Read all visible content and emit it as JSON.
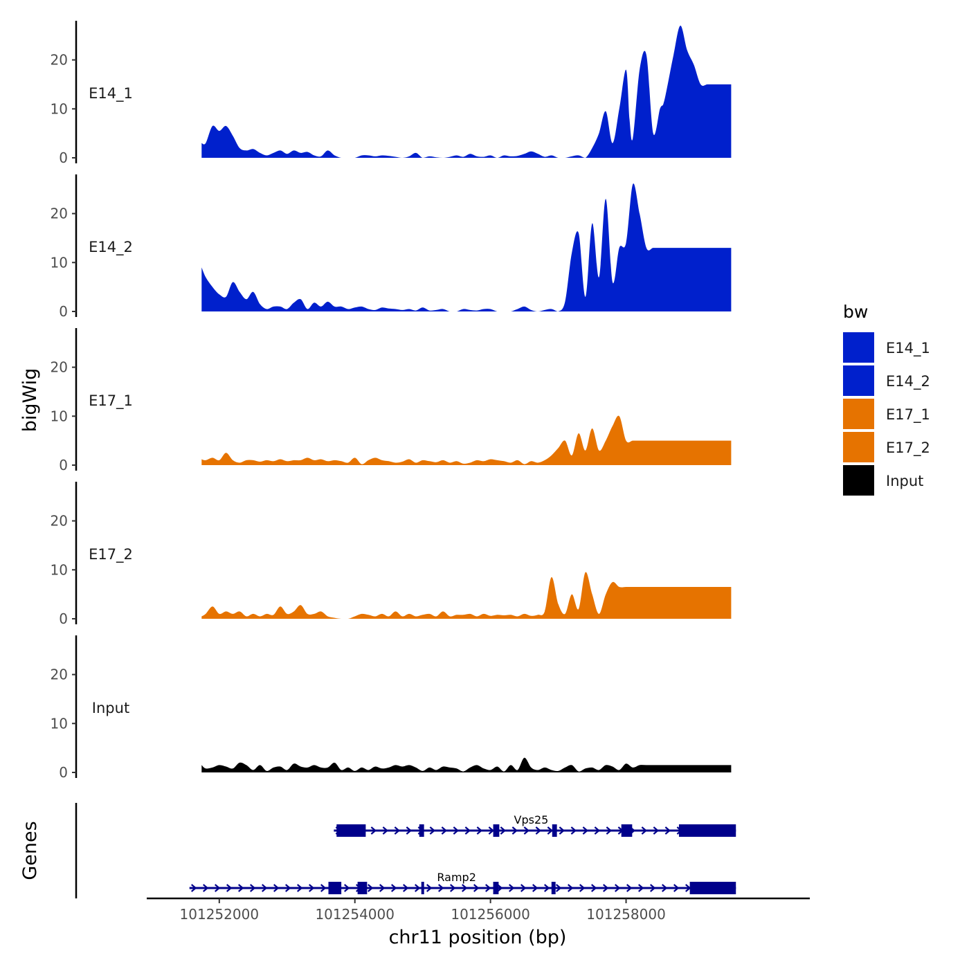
{
  "chart_data": {
    "type": "area",
    "chromosome": "chr11",
    "xlabel": "chr11 position (bp)",
    "ylabel_tracks": "bigWig",
    "ylabel_genes": "Genes",
    "xlim": [
      101250930,
      101260710
    ],
    "ylim": [
      0,
      28
    ],
    "x_ticks": [
      101252000,
      101254000,
      101256000,
      101258000
    ],
    "x_tick_labels": [
      "101252000",
      "101254000",
      "101256000",
      "101258000"
    ],
    "y_ticks": [
      0,
      10,
      20
    ],
    "y_tick_labels": [
      "0",
      "10",
      "20"
    ],
    "legend": {
      "title": "bw",
      "position": "right",
      "entries": [
        {
          "label": "E14_1",
          "color": "#0020cc"
        },
        {
          "label": "E14_2",
          "color": "#0020cc"
        },
        {
          "label": "E17_1",
          "color": "#e67300"
        },
        {
          "label": "E17_2",
          "color": "#e67300"
        },
        {
          "label": "Input",
          "color": "#000000"
        }
      ]
    },
    "series": [
      {
        "name": "E14_1",
        "color": "#0020cc",
        "x": [
          101251740,
          101251800,
          101251900,
          101252000,
          101252100,
          101252200,
          101252300,
          101252400,
          101252500,
          101252600,
          101252700,
          101252800,
          101252900,
          101253000,
          101253100,
          101253200,
          101253300,
          101253400,
          101253500,
          101253600,
          101253700,
          101253800,
          101253900,
          101254000,
          101254100,
          101254200,
          101254300,
          101254400,
          101254500,
          101254600,
          101254700,
          101254800,
          101254900,
          101255000,
          101255100,
          101255200,
          101255300,
          101255400,
          101255500,
          101255600,
          101255700,
          101255800,
          101255900,
          101256000,
          101256100,
          101256200,
          101256300,
          101256400,
          101256500,
          101256600,
          101256700,
          101256800,
          101256900,
          101257000,
          101257100,
          101257200,
          101257300,
          101257400,
          101257500,
          101257600,
          101257700,
          101257800,
          101257900,
          101258000,
          101258050,
          101258100,
          101258200,
          101258300,
          101258400,
          101258500,
          101258550,
          101258600,
          101258700,
          101258800,
          101258900,
          101259000,
          101259100,
          101259200,
          101259300,
          101259400,
          101259450,
          101259500,
          101259550
        ],
        "values": [
          3,
          3,
          6.5,
          5.5,
          6.5,
          4.5,
          2,
          1.5,
          1.8,
          1,
          0.5,
          1,
          1.5,
          0.8,
          1.5,
          1,
          1.2,
          0.5,
          0.3,
          1.5,
          0.5,
          0,
          0,
          0,
          0.5,
          0.5,
          0.3,
          0.5,
          0.4,
          0.2,
          0,
          0.3,
          1,
          0,
          0.3,
          0.1,
          0,
          0.2,
          0.5,
          0.2,
          0.8,
          0.3,
          0.2,
          0.5,
          0,
          0.5,
          0.3,
          0.4,
          0.8,
          1.3,
          0.8,
          0.2,
          0.5,
          0,
          0,
          0.3,
          0.5,
          0,
          2,
          5,
          9.5,
          3,
          10,
          18,
          8,
          4,
          18,
          21,
          5,
          10,
          11,
          14,
          21,
          27,
          22,
          19,
          15,
          15,
          15,
          15,
          15,
          15,
          15
        ]
      },
      {
        "name": "E14_2",
        "color": "#0020cc",
        "x": [
          101251740,
          101251800,
          101251900,
          101252000,
          101252100,
          101252200,
          101252300,
          101252400,
          101252500,
          101252600,
          101252700,
          101252800,
          101252900,
          101253000,
          101253100,
          101253200,
          101253300,
          101253400,
          101253500,
          101253600,
          101253700,
          101253800,
          101253900,
          101254000,
          101254100,
          101254200,
          101254300,
          101254400,
          101254500,
          101254600,
          101254700,
          101254800,
          101254900,
          101255000,
          101255100,
          101255200,
          101255300,
          101255400,
          101255500,
          101255600,
          101255700,
          101255800,
          101255900,
          101256000,
          101256100,
          101256200,
          101256300,
          101256400,
          101256500,
          101256600,
          101256700,
          101256800,
          101256900,
          101257000,
          101257100,
          101257200,
          101257300,
          101257400,
          101257500,
          101257600,
          101257700,
          101257800,
          101257900,
          101258000,
          101258100,
          101258200,
          101258300,
          101258400,
          101258500,
          101258600,
          101258700,
          101258800,
          101258900,
          101259000,
          101259100,
          101259200,
          101259300,
          101259400,
          101259500,
          101259550
        ],
        "values": [
          9,
          7,
          5,
          3.5,
          3,
          6,
          4,
          2.5,
          4,
          1.5,
          0.5,
          1,
          1,
          0.5,
          1.8,
          2.5,
          0.5,
          1.8,
          1,
          2,
          1,
          1,
          0.5,
          0.8,
          1,
          0.5,
          0.3,
          0.8,
          0.6,
          0.5,
          0.3,
          0.5,
          0.2,
          0.8,
          0.2,
          0.3,
          0.5,
          0,
          0,
          0.5,
          0.3,
          0.2,
          0.5,
          0.5,
          0,
          0,
          0,
          0.5,
          1,
          0.3,
          0,
          0.3,
          0.5,
          0,
          2,
          12,
          16,
          3,
          18,
          7,
          23,
          6,
          13,
          14,
          26,
          20,
          13,
          13,
          13,
          13,
          13,
          13,
          13,
          13,
          13,
          13,
          13,
          13,
          13,
          13
        ]
      },
      {
        "name": "E17_1",
        "color": "#e67300",
        "x": [
          101251740,
          101251800,
          101251900,
          101252000,
          101252100,
          101252200,
          101252300,
          101252400,
          101252500,
          101252600,
          101252700,
          101252800,
          101252900,
          101253000,
          101253100,
          101253200,
          101253300,
          101253400,
          101253500,
          101253600,
          101253700,
          101253800,
          101253900,
          101254000,
          101254100,
          101254200,
          101254300,
          101254400,
          101254500,
          101254600,
          101254700,
          101254800,
          101254900,
          101255000,
          101255100,
          101255200,
          101255300,
          101255400,
          101255500,
          101255600,
          101255700,
          101255800,
          101255900,
          101256000,
          101256100,
          101256200,
          101256300,
          101256400,
          101256500,
          101256600,
          101256700,
          101256800,
          101256900,
          101257000,
          101257100,
          101257200,
          101257300,
          101257400,
          101257500,
          101257600,
          101257700,
          101257800,
          101257900,
          101258000,
          101258100,
          101258200,
          101258300,
          101258400,
          101258500,
          101258600,
          101258700,
          101258800,
          101258900,
          101259000,
          101259100,
          101259200,
          101259300,
          101259400,
          101259500,
          101259550
        ],
        "values": [
          1.2,
          1,
          1.5,
          1,
          2.5,
          1,
          0.5,
          1,
          1,
          0.7,
          1,
          0.8,
          1.2,
          0.8,
          1,
          1,
          1.5,
          1,
          1.2,
          0.8,
          1,
          0.8,
          0.5,
          1.5,
          0.2,
          1,
          1.5,
          1,
          0.8,
          0.5,
          0.7,
          1.2,
          0.5,
          1,
          0.8,
          0.6,
          1,
          0.5,
          0.8,
          0.3,
          0.5,
          1,
          0.8,
          1.2,
          1,
          0.8,
          0.5,
          1,
          0.2,
          0.8,
          0.5,
          1,
          2,
          3.5,
          5,
          2,
          6.5,
          3,
          7.5,
          3,
          5,
          8,
          10,
          5,
          5,
          5,
          5,
          5,
          5,
          5,
          5,
          5,
          5,
          5,
          5,
          5,
          5,
          5,
          5,
          5
        ]
      },
      {
        "name": "E17_2",
        "color": "#e67300",
        "x": [
          101251740,
          101251800,
          101251900,
          101252000,
          101252100,
          101252200,
          101252300,
          101252400,
          101252500,
          101252600,
          101252700,
          101252800,
          101252900,
          101253000,
          101253100,
          101253200,
          101253300,
          101253400,
          101253500,
          101253600,
          101253700,
          101253800,
          101253900,
          101254000,
          101254100,
          101254200,
          101254300,
          101254400,
          101254500,
          101254600,
          101254700,
          101254800,
          101254900,
          101255000,
          101255100,
          101255200,
          101255300,
          101255400,
          101255500,
          101255600,
          101255700,
          101255800,
          101255900,
          101256000,
          101256100,
          101256200,
          101256300,
          101256400,
          101256500,
          101256600,
          101256700,
          101256800,
          101256900,
          101257000,
          101257100,
          101257200,
          101257300,
          101257400,
          101257500,
          101257600,
          101257700,
          101257800,
          101257900,
          101258000,
          101258100,
          101258200,
          101258300,
          101258400,
          101258500,
          101258600,
          101258700,
          101258800,
          101258900,
          101259000,
          101259100,
          101259200,
          101259300,
          101259400,
          101259500,
          101259550
        ],
        "values": [
          0.5,
          1,
          2.5,
          1,
          1.5,
          1,
          1.5,
          0.5,
          1,
          0.5,
          1,
          0.8,
          2.5,
          1,
          1.5,
          2.8,
          1,
          1,
          1.5,
          0.5,
          0.2,
          0,
          0,
          0.5,
          1,
          0.8,
          0.5,
          1,
          0.5,
          1.5,
          0.5,
          1,
          0.5,
          0.8,
          1,
          0.5,
          1.5,
          0.5,
          0.8,
          0.8,
          1,
          0.5,
          1,
          0.6,
          0.8,
          0.7,
          0.8,
          0.5,
          1,
          0.6,
          0.8,
          1.5,
          8.5,
          3,
          1,
          5,
          2,
          9.5,
          5,
          1,
          5,
          7.5,
          6.5,
          6.5,
          6.5,
          6.5,
          6.5,
          6.5,
          6.5,
          6.5,
          6.5,
          6.5,
          6.5,
          6.5,
          6.5,
          6.5,
          6.5,
          6.5,
          6.5,
          6.5
        ]
      },
      {
        "name": "Input",
        "color": "#000000",
        "x": [
          101251740,
          101251800,
          101251900,
          101252000,
          101252100,
          101252200,
          101252300,
          101252400,
          101252500,
          101252600,
          101252700,
          101252800,
          101252900,
          101253000,
          101253100,
          101253200,
          101253300,
          101253400,
          101253500,
          101253600,
          101253700,
          101253800,
          101253900,
          101254000,
          101254100,
          101254200,
          101254300,
          101254400,
          101254500,
          101254600,
          101254700,
          101254800,
          101254900,
          101255000,
          101255100,
          101255200,
          101255300,
          101255400,
          101255500,
          101255600,
          101255700,
          101255800,
          101255900,
          101256000,
          101256100,
          101256200,
          101256300,
          101256400,
          101256500,
          101256600,
          101256700,
          101256800,
          101256900,
          101257000,
          101257100,
          101257200,
          101257300,
          101257400,
          101257500,
          101257600,
          101257700,
          101257800,
          101257900,
          101258000,
          101258100,
          101258200,
          101258300,
          101258400,
          101258500,
          101258600,
          101258700,
          101258800,
          101258900,
          101259000,
          101259100,
          101259200,
          101259300,
          101259400,
          101259500,
          101259550
        ],
        "values": [
          1.5,
          0.8,
          1,
          1.5,
          1.2,
          0.8,
          2,
          1.5,
          0.5,
          1.5,
          0.3,
          1,
          1.2,
          0.5,
          1.8,
          1.2,
          1,
          1.5,
          1,
          1,
          2,
          0.5,
          1,
          0.3,
          1,
          0.5,
          1.2,
          0.8,
          1,
          1.5,
          1.2,
          1.5,
          1,
          0.3,
          1,
          0.5,
          1.2,
          1,
          0.8,
          0.2,
          1,
          1.5,
          0.8,
          0.5,
          1.2,
          0.2,
          1.5,
          0.5,
          3,
          1,
          0.5,
          1,
          0.5,
          0.3,
          1,
          1.5,
          0.2,
          0.8,
          1,
          0.5,
          1.5,
          1.2,
          0.5,
          1.8,
          1,
          1.5,
          1.5,
          1.5,
          1.5,
          1.5,
          1.5,
          1.5,
          1.5,
          1.5,
          1.5,
          1.5,
          1.5,
          1.5,
          1.5,
          1.5
        ]
      }
    ],
    "genes": [
      {
        "name": "Vps25",
        "strand": "+",
        "start": 101253690,
        "end": 101259620,
        "exons": [
          [
            101253730,
            101254160
          ],
          [
            101254950,
            101255020
          ],
          [
            101256040,
            101256130
          ],
          [
            101256910,
            101256980
          ],
          [
            101257930,
            101258090
          ],
          [
            101258780,
            101259620
          ]
        ]
      },
      {
        "name": "Ramp2",
        "strand": "+",
        "start": 101251560,
        "end": 101259620,
        "exons": [
          [
            101253610,
            101253800
          ],
          [
            101254040,
            101254180
          ],
          [
            101254980,
            101255020
          ],
          [
            101256040,
            101256120
          ],
          [
            101256900,
            101256960
          ],
          [
            101258940,
            101259620
          ]
        ]
      }
    ]
  }
}
